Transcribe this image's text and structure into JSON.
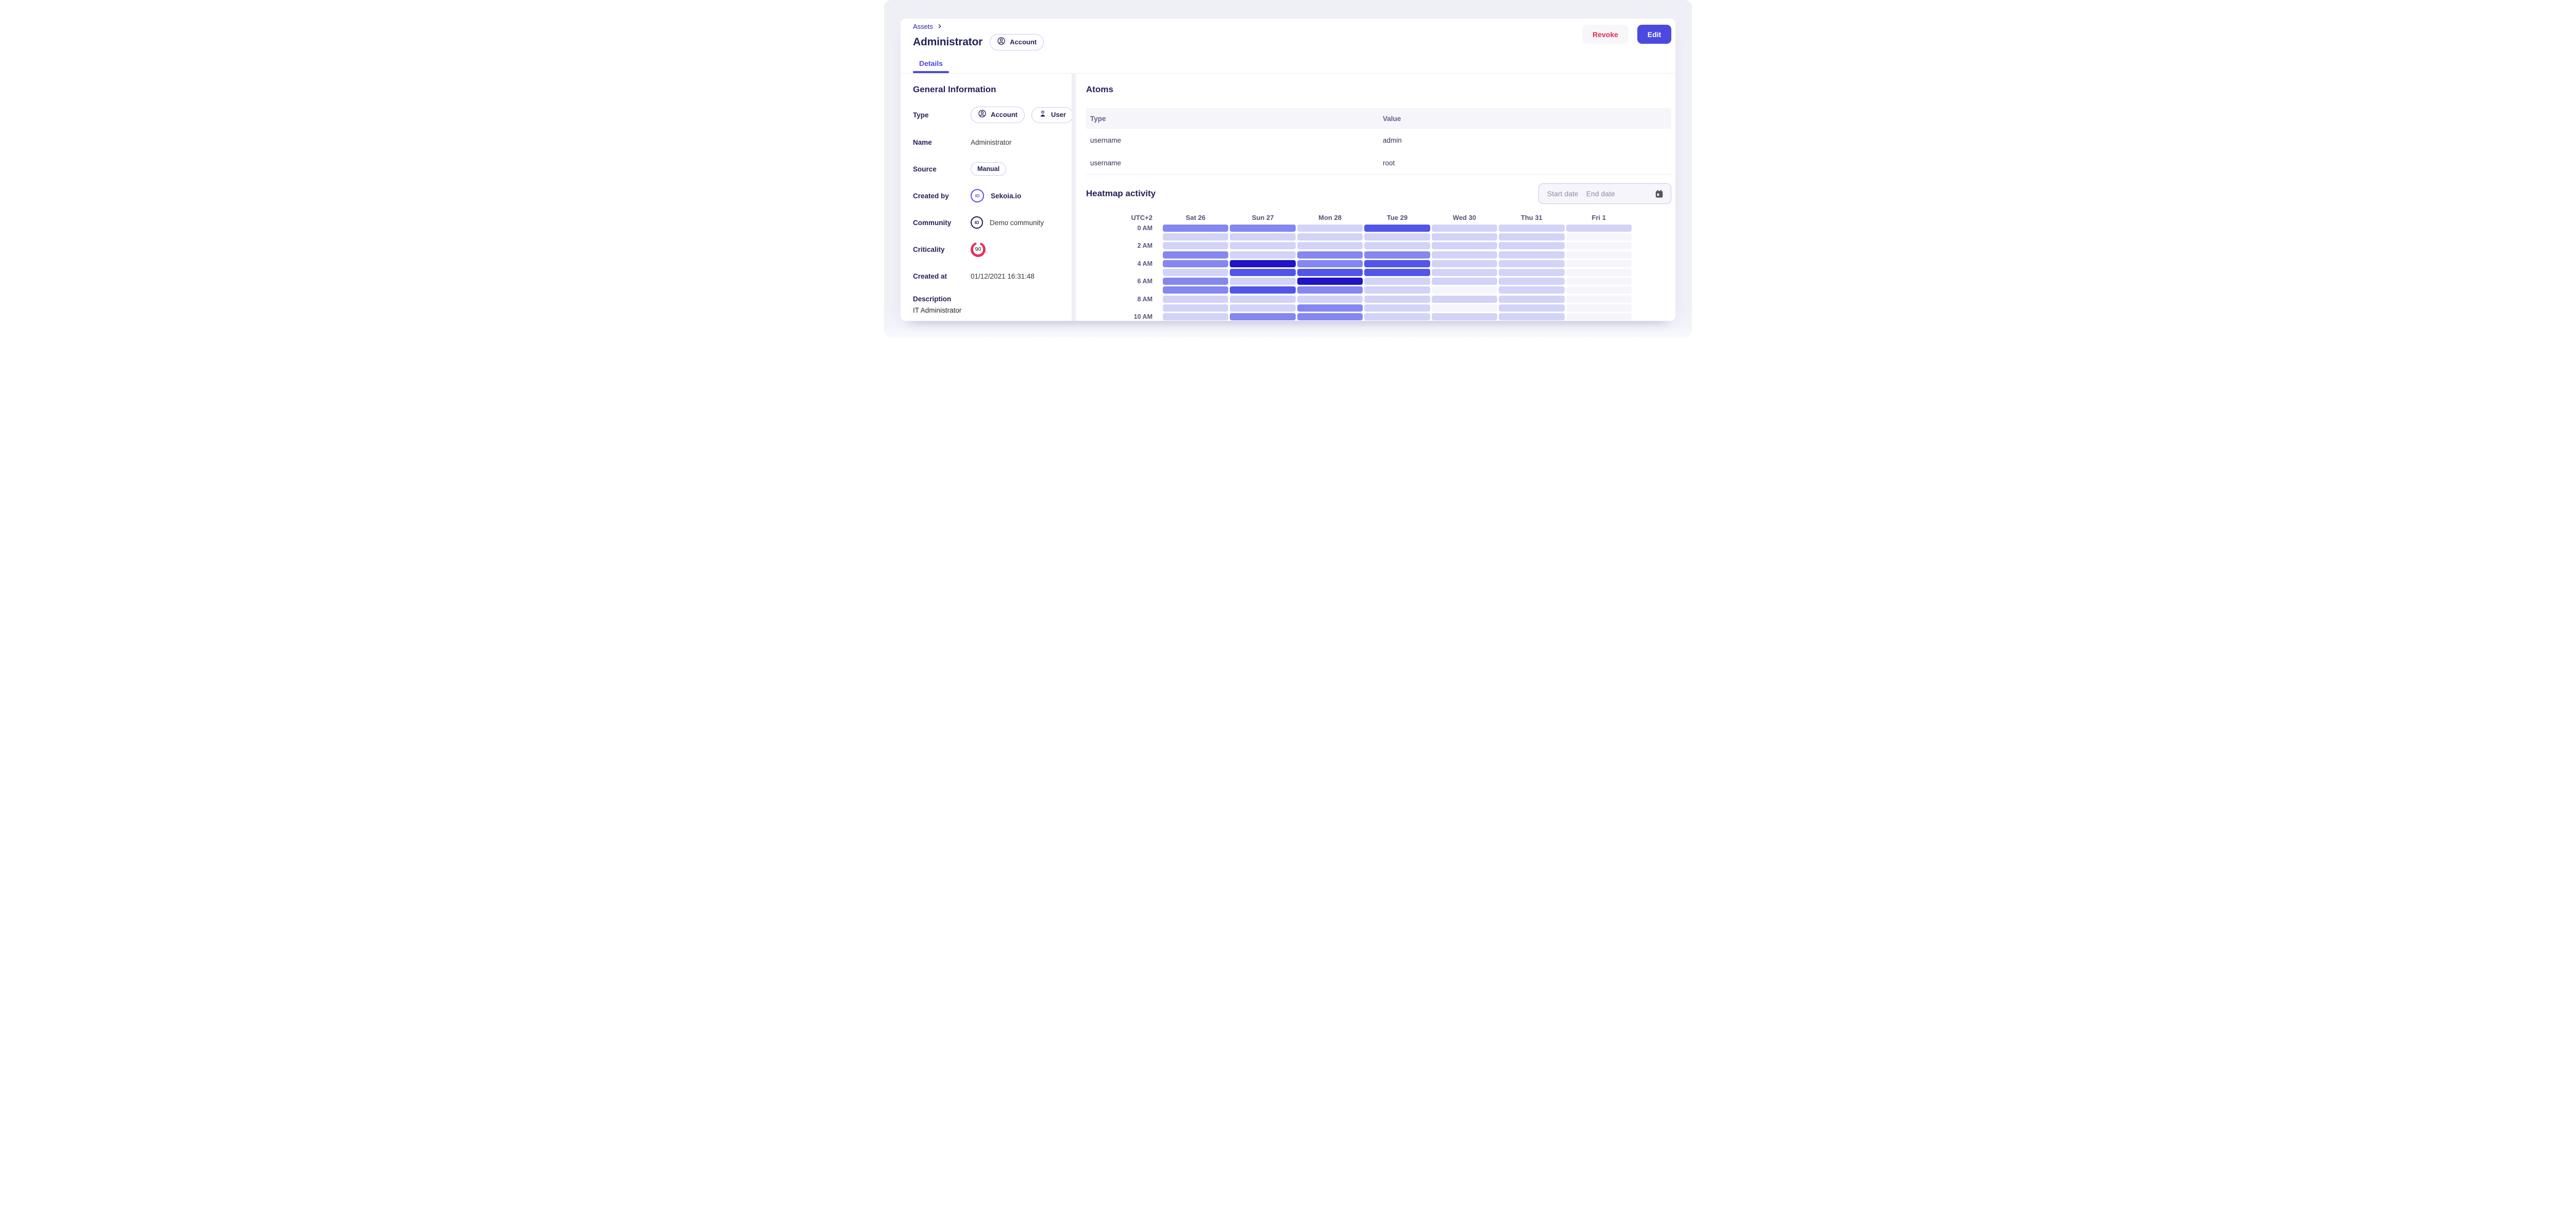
{
  "theme": {
    "accent": "#4c49e0",
    "danger": "#e4294f",
    "criticality_ring": "#e4315b",
    "created_by_logo": "#5b50f1",
    "community_logo": "#1b1a4a",
    "heading": "#24215a",
    "breadcrumb_link": "#2724a9",
    "page_background": "#eff0f6"
  },
  "breadcrumb": {
    "items": [
      {
        "label": "Assets"
      }
    ]
  },
  "header": {
    "title": "Administrator",
    "type_badge": {
      "icon": "account-circle-icon",
      "label": "Account"
    },
    "actions": {
      "revoke_label": "Revoke",
      "edit_label": "Edit"
    }
  },
  "tabs": [
    {
      "label": "Details",
      "active": true
    }
  ],
  "general_info": {
    "title": "General Information",
    "type_label": "Type",
    "type_badges": [
      {
        "icon": "account-circle-icon",
        "label": "Account"
      },
      {
        "icon": "user-icon",
        "label": "User"
      }
    ],
    "name_label": "Name",
    "name_value": "Administrator",
    "source_label": "Source",
    "source_badge": "Manual",
    "created_by_label": "Created by",
    "created_by_logo_text": "IO",
    "created_by_value": "Sekoia.io",
    "community_label": "Community",
    "community_logo_text": "IO",
    "community_value": "Demo community",
    "criticality_label": "Criticality",
    "criticality_value": "90",
    "created_at_label": "Created at",
    "created_at_value": "01/12/2021 16:31:48",
    "description_label": "Description",
    "description_value": "IT Administrator"
  },
  "atoms": {
    "title": "Atoms",
    "columns": [
      "Type",
      "Value"
    ],
    "rows": [
      {
        "type": "username",
        "value": "admin"
      },
      {
        "type": "username",
        "value": "root"
      }
    ]
  },
  "heatmap": {
    "title": "Heatmap activity",
    "start_date_placeholder": "Start date",
    "end_date_placeholder": "End date"
  },
  "chart_data": {
    "type": "heatmap",
    "title": "Heatmap activity",
    "corner_label": "UTC+2",
    "x_labels": [
      "Sat 26",
      "Sun 27",
      "Mon 28",
      "Tue 29",
      "Wed 30",
      "Thu 31",
      "Fri 1"
    ],
    "hours": [
      0,
      1,
      2,
      3,
      4,
      5,
      6,
      7,
      8,
      9,
      10
    ],
    "y_labels_shown": [
      "0 AM",
      "2 AM",
      "4 AM",
      "6 AM",
      "8 AM",
      "10 AM"
    ],
    "intensity_scale": "0 = no activity, 4 = max activity",
    "palette": [
      "#f5f5fb",
      "#d2d3f7",
      "#8487f0",
      "#5155e8",
      "#2013c8"
    ],
    "values_by_hour_row": [
      [
        2,
        2,
        1,
        3,
        1,
        1,
        1
      ],
      [
        1,
        1,
        1,
        1,
        1,
        1,
        0
      ],
      [
        1,
        1,
        1,
        1,
        1,
        1,
        0
      ],
      [
        2,
        1,
        2,
        2,
        1,
        1,
        0
      ],
      [
        2,
        4,
        2,
        3,
        1,
        1,
        0
      ],
      [
        1,
        3,
        3,
        3,
        1,
        1,
        0
      ],
      [
        2,
        1,
        4,
        1,
        1,
        1,
        0
      ],
      [
        2,
        3,
        2,
        1,
        0,
        1,
        0
      ],
      [
        1,
        1,
        1,
        1,
        1,
        1,
        0
      ],
      [
        1,
        1,
        2,
        1,
        0,
        1,
        0
      ],
      [
        1,
        2,
        2,
        1,
        1,
        1,
        0
      ]
    ],
    "grid": false,
    "legend": false
  }
}
